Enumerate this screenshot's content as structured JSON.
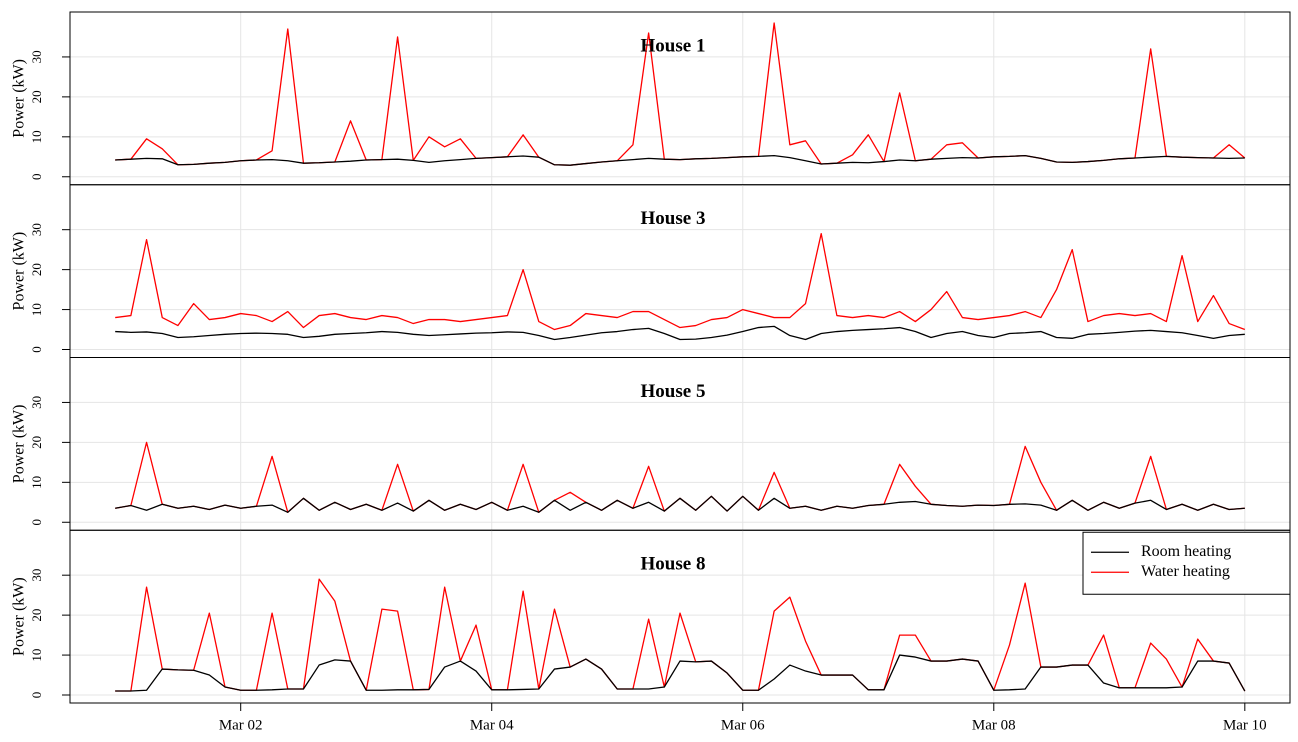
{
  "chart_data": [
    {
      "type": "line",
      "title": "House 1",
      "y_label": "Power (kW)",
      "ylim": [
        -2,
        41.25
      ],
      "yticks": [
        0,
        10,
        20,
        30
      ],
      "xlim": [
        0.64,
        10.36
      ],
      "grid": true,
      "x": [
        1,
        1.125,
        1.25,
        1.375,
        1.5,
        1.625,
        1.75,
        1.875,
        2,
        2.125,
        2.25,
        2.375,
        2.5,
        2.625,
        2.75,
        2.875,
        3,
        3.125,
        3.25,
        3.375,
        3.5,
        3.625,
        3.75,
        3.875,
        4,
        4.125,
        4.25,
        4.375,
        4.5,
        4.625,
        4.75,
        4.875,
        5,
        5.125,
        5.25,
        5.375,
        5.5,
        5.625,
        5.75,
        5.875,
        6,
        6.125,
        6.25,
        6.375,
        6.5,
        6.625,
        6.75,
        6.875,
        7,
        7.125,
        7.25,
        7.375,
        7.5,
        7.625,
        7.75,
        7.875,
        8,
        8.125,
        8.25,
        8.375,
        8.5,
        8.625,
        8.75,
        8.875,
        9,
        9.125,
        9.25,
        9.375,
        9.5,
        9.625,
        9.75,
        9.875,
        10
      ],
      "series": [
        {
          "color": "#000000",
          "values": [
            4.2,
            4.4,
            4.6,
            4.5,
            3.0,
            3.1,
            3.4,
            3.6,
            4.0,
            4.2,
            4.3,
            4.0,
            3.4,
            3.5,
            3.7,
            3.9,
            4.2,
            4.3,
            4.4,
            4.1,
            3.6,
            4.0,
            4.3,
            4.6,
            4.8,
            5.0,
            5.2,
            4.9,
            3.0,
            2.9,
            3.3,
            3.7,
            4.0,
            4.3,
            4.6,
            4.4,
            4.3,
            4.5,
            4.6,
            4.8,
            5.0,
            5.1,
            5.3,
            4.8,
            4.0,
            3.2,
            3.4,
            3.6,
            3.5,
            3.8,
            4.2,
            4.0,
            4.4,
            4.6,
            4.8,
            4.7,
            5.0,
            5.1,
            5.3,
            4.6,
            3.7,
            3.6,
            3.8,
            4.1,
            4.5,
            4.7,
            4.9,
            5.1,
            4.9,
            4.8,
            4.7,
            4.6,
            4.7
          ]
        },
        {
          "color": "#ff0000",
          "values": [
            4.2,
            4.4,
            9.5,
            7,
            3.0,
            3.1,
            3.4,
            3.6,
            4.0,
            4.2,
            6.5,
            37,
            3.4,
            3.5,
            3.7,
            14,
            4.2,
            4.3,
            35,
            4.1,
            10,
            7.5,
            9.5,
            4.6,
            4.8,
            5.0,
            10.5,
            4.9,
            3.0,
            2.9,
            3.3,
            3.7,
            4.0,
            8,
            36,
            4.4,
            4.3,
            4.5,
            4.6,
            4.8,
            5.0,
            5.1,
            38.5,
            8,
            9,
            3.2,
            3.4,
            5.5,
            10.5,
            3.8,
            21,
            4.0,
            4.4,
            8,
            8.5,
            4.7,
            5.0,
            5.1,
            5.3,
            4.6,
            3.7,
            3.6,
            3.8,
            4.1,
            4.5,
            4.7,
            32,
            5.1,
            4.9,
            4.8,
            4.7,
            8,
            4.7
          ]
        }
      ]
    },
    {
      "type": "line",
      "title": "House 3",
      "y_label": "Power (kW)",
      "ylim": [
        -2,
        41.25
      ],
      "yticks": [
        0,
        10,
        20,
        30
      ],
      "xlim": [
        0.64,
        10.36
      ],
      "grid": true,
      "x": [
        1,
        1.125,
        1.25,
        1.375,
        1.5,
        1.625,
        1.75,
        1.875,
        2,
        2.125,
        2.25,
        2.375,
        2.5,
        2.625,
        2.75,
        2.875,
        3,
        3.125,
        3.25,
        3.375,
        3.5,
        3.625,
        3.75,
        3.875,
        4,
        4.125,
        4.25,
        4.375,
        4.5,
        4.625,
        4.75,
        4.875,
        5,
        5.125,
        5.25,
        5.375,
        5.5,
        5.625,
        5.75,
        5.875,
        6,
        6.125,
        6.25,
        6.375,
        6.5,
        6.625,
        6.75,
        6.875,
        7,
        7.125,
        7.25,
        7.375,
        7.5,
        7.625,
        7.75,
        7.875,
        8,
        8.125,
        8.25,
        8.375,
        8.5,
        8.625,
        8.75,
        8.875,
        9,
        9.125,
        9.25,
        9.375,
        9.5,
        9.625,
        9.75,
        9.875,
        10
      ],
      "series": [
        {
          "color": "#000000",
          "values": [
            4.5,
            4.3,
            4.4,
            4.0,
            3.0,
            3.2,
            3.5,
            3.8,
            4.0,
            4.1,
            4.0,
            3.8,
            3.0,
            3.3,
            3.8,
            4.0,
            4.2,
            4.5,
            4.3,
            3.8,
            3.5,
            3.7,
            3.9,
            4.1,
            4.2,
            4.4,
            4.3,
            3.5,
            2.5,
            3.0,
            3.6,
            4.2,
            4.5,
            5.0,
            5.3,
            4.0,
            2.5,
            2.6,
            3.0,
            3.6,
            4.5,
            5.5,
            5.8,
            3.5,
            2.5,
            4.0,
            4.5,
            4.8,
            5.0,
            5.2,
            5.5,
            4.5,
            3.0,
            4.0,
            4.5,
            3.5,
            3.0,
            4.0,
            4.2,
            4.5,
            3.0,
            2.8,
            3.8,
            4.0,
            4.3,
            4.6,
            4.8,
            4.5,
            4.2,
            3.5,
            2.8,
            3.5,
            3.8
          ]
        },
        {
          "color": "#ff0000",
          "values": [
            8,
            8.5,
            27.5,
            8,
            6,
            11.5,
            7.5,
            8,
            9,
            8.5,
            7,
            9.5,
            5.5,
            8.5,
            9,
            8,
            7.5,
            8.5,
            8,
            6.5,
            7.5,
            7.5,
            7,
            7.5,
            8,
            8.5,
            20,
            7,
            5,
            6,
            9,
            8.5,
            8,
            9.5,
            9.5,
            7.5,
            5.5,
            6,
            7.5,
            8,
            10,
            9,
            8,
            8,
            11.5,
            29,
            8.5,
            8,
            8.5,
            8,
            9.5,
            7,
            10,
            14.5,
            8,
            7.5,
            8,
            8.5,
            9.5,
            8,
            15,
            25,
            7,
            8.5,
            9,
            8.5,
            9,
            7,
            23.5,
            7,
            13.5,
            6.5,
            5
          ]
        }
      ]
    },
    {
      "type": "line",
      "title": "House 5",
      "y_label": "Power (kW)",
      "ylim": [
        -2,
        41.25
      ],
      "yticks": [
        0,
        10,
        20,
        30
      ],
      "xlim": [
        0.64,
        10.36
      ],
      "grid": true,
      "x": [
        1,
        1.125,
        1.25,
        1.375,
        1.5,
        1.625,
        1.75,
        1.875,
        2,
        2.125,
        2.25,
        2.375,
        2.5,
        2.625,
        2.75,
        2.875,
        3,
        3.125,
        3.25,
        3.375,
        3.5,
        3.625,
        3.75,
        3.875,
        4,
        4.125,
        4.25,
        4.375,
        4.5,
        4.625,
        4.75,
        4.875,
        5,
        5.125,
        5.25,
        5.375,
        5.5,
        5.625,
        5.75,
        5.875,
        6,
        6.125,
        6.25,
        6.375,
        6.5,
        6.625,
        6.75,
        6.875,
        7,
        7.125,
        7.25,
        7.375,
        7.5,
        7.625,
        7.75,
        7.875,
        8,
        8.125,
        8.25,
        8.375,
        8.5,
        8.625,
        8.75,
        8.875,
        9,
        9.125,
        9.25,
        9.375,
        9.5,
        9.625,
        9.75,
        9.875,
        10
      ],
      "series": [
        {
          "color": "#000000",
          "values": [
            3.5,
            4.2,
            3.0,
            4.5,
            3.5,
            4.0,
            3.2,
            4.3,
            3.5,
            4.0,
            4.3,
            2.5,
            6.0,
            3.0,
            5.0,
            3.2,
            4.5,
            3.0,
            4.8,
            2.8,
            5.5,
            3.0,
            4.5,
            3.2,
            5.0,
            3.0,
            4.0,
            2.5,
            5.5,
            3.0,
            5.0,
            3.0,
            5.5,
            3.5,
            5.0,
            2.8,
            6.0,
            3.0,
            6.5,
            2.8,
            6.5,
            3.0,
            6.0,
            3.5,
            4.0,
            3.0,
            4.0,
            3.5,
            4.2,
            4.5,
            5.0,
            5.2,
            4.5,
            4.2,
            4.0,
            4.3,
            4.2,
            4.5,
            4.6,
            4.3,
            3.0,
            5.5,
            3.0,
            5.0,
            3.5,
            4.8,
            5.5,
            3.2,
            4.5,
            3.0,
            4.5,
            3.2,
            3.5
          ]
        },
        {
          "color": "#ff0000",
          "values": [
            3.5,
            4.2,
            20,
            4.5,
            3.5,
            4.0,
            3.2,
            4.3,
            3.5,
            4.0,
            16.5,
            2.5,
            6.0,
            3.0,
            5.0,
            3.2,
            4.5,
            3.0,
            14.5,
            2.8,
            5.5,
            3.0,
            4.5,
            3.2,
            5.0,
            3.0,
            14.5,
            2.5,
            5.5,
            7.5,
            5.0,
            3.0,
            5.5,
            3.5,
            14,
            2.8,
            6.0,
            3.0,
            6.5,
            2.8,
            6.5,
            3.0,
            12.5,
            3.5,
            4.0,
            3.0,
            4.0,
            3.5,
            4.2,
            4.5,
            14.5,
            9,
            4.5,
            4.2,
            4.0,
            4.3,
            4.2,
            4.5,
            19,
            10,
            3.0,
            5.5,
            3.0,
            5.0,
            3.5,
            4.8,
            16.5,
            3.2,
            4.5,
            3.0,
            4.5,
            3.2,
            3.5
          ]
        }
      ]
    },
    {
      "type": "line",
      "title": "House 8",
      "y_label": "Power (kW)",
      "ylim": [
        -2,
        41.25
      ],
      "yticks": [
        0,
        10,
        20,
        30
      ],
      "xlim": [
        0.64,
        10.36
      ],
      "grid": true,
      "legend": "top-right",
      "xticks": [
        {
          "value": 2,
          "label": "Mar 02"
        },
        {
          "value": 4,
          "label": "Mar 04"
        },
        {
          "value": 6,
          "label": "Mar 06"
        },
        {
          "value": 8,
          "label": "Mar 08"
        },
        {
          "value": 10,
          "label": "Mar 10"
        }
      ],
      "x": [
        1,
        1.125,
        1.25,
        1.375,
        1.5,
        1.625,
        1.75,
        1.875,
        2,
        2.125,
        2.25,
        2.375,
        2.5,
        2.625,
        2.75,
        2.875,
        3,
        3.125,
        3.25,
        3.375,
        3.5,
        3.625,
        3.75,
        3.875,
        4,
        4.125,
        4.25,
        4.375,
        4.5,
        4.625,
        4.75,
        4.875,
        5,
        5.125,
        5.25,
        5.375,
        5.5,
        5.625,
        5.75,
        5.875,
        6,
        6.125,
        6.25,
        6.375,
        6.5,
        6.625,
        6.75,
        6.875,
        7,
        7.125,
        7.25,
        7.375,
        7.5,
        7.625,
        7.75,
        7.875,
        8,
        8.125,
        8.25,
        8.375,
        8.5,
        8.625,
        8.75,
        8.875,
        9,
        9.125,
        9.25,
        9.375,
        9.5,
        9.625,
        9.75,
        9.875,
        10
      ],
      "series": [
        {
          "name": "Room heating",
          "color": "#000000",
          "values": [
            1.0,
            1.0,
            1.2,
            6.5,
            6.3,
            6.2,
            5.0,
            2.0,
            1.2,
            1.2,
            1.3,
            1.5,
            1.5,
            7.5,
            8.8,
            8.5,
            1.2,
            1.2,
            1.3,
            1.3,
            1.4,
            7.0,
            8.5,
            6.0,
            1.3,
            1.3,
            1.4,
            1.5,
            6.5,
            7.0,
            9.0,
            6.5,
            1.5,
            1.5,
            1.5,
            2.0,
            8.5,
            8.3,
            8.5,
            5.5,
            1.2,
            1.2,
            4.0,
            7.5,
            6.0,
            5.0,
            5.0,
            5.0,
            1.3,
            1.3,
            10.0,
            9.5,
            8.5,
            8.5,
            9.0,
            8.5,
            1.2,
            1.3,
            1.5,
            7.0,
            7.0,
            7.5,
            7.5,
            3.0,
            1.8,
            1.8,
            1.8,
            1.8,
            2.0,
            8.5,
            8.5,
            8.0,
            1.0
          ]
        },
        {
          "name": "Water heating",
          "color": "#ff0000",
          "values": [
            1.0,
            1.0,
            27,
            6.5,
            6.3,
            6.2,
            20.5,
            2.0,
            1.2,
            1.2,
            20.5,
            1.5,
            1.5,
            29,
            23.5,
            8.5,
            1.2,
            21.5,
            21,
            1.3,
            1.4,
            27,
            8.5,
            17.5,
            1.3,
            1.3,
            26,
            1.5,
            21.5,
            7.0,
            9.0,
            6.5,
            1.5,
            1.5,
            19,
            2.0,
            20.5,
            8.3,
            8.5,
            5.5,
            1.2,
            1.2,
            21,
            24.5,
            13.5,
            5.0,
            5.0,
            5.0,
            1.3,
            1.3,
            15,
            15,
            8.5,
            8.5,
            9.0,
            8.5,
            1.2,
            12.5,
            28,
            7.0,
            7.0,
            7.5,
            7.5,
            15,
            1.8,
            1.8,
            13,
            9,
            2.0,
            14,
            8.5,
            8.0,
            1.0
          ]
        }
      ]
    }
  ]
}
